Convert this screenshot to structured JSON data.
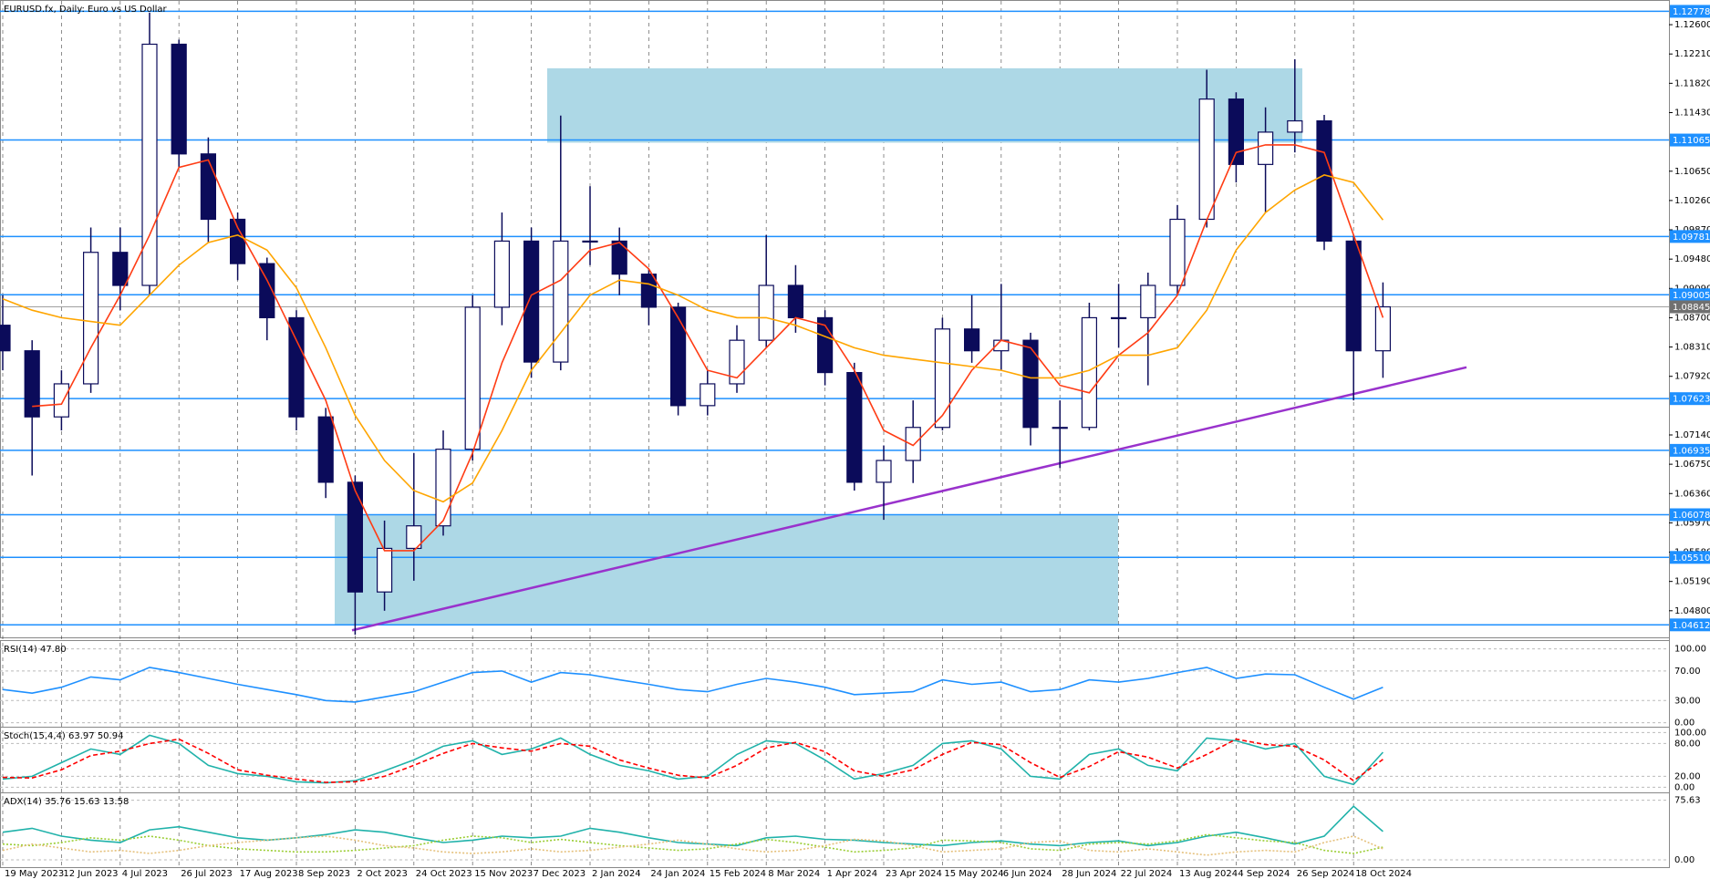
{
  "chart_data": [
    {
      "type": "candlestick",
      "title": "EURUSD.fx, Daily:  Euro vs US Dollar",
      "categories": [
        "19 May 2023",
        null,
        "12 Jun 2023",
        null,
        "4 Jul 2023",
        null,
        "26 Jul 2023",
        null,
        "17 Aug 2023",
        null,
        "8 Sep 2023",
        null,
        "2 Oct 2023",
        null,
        "24 Oct 2023",
        null,
        "15 Nov 2023",
        null,
        "7 Dec 2023",
        null,
        "2 Jan 2024",
        null,
        "24 Jan 2024",
        null,
        "15 Feb 2024",
        null,
        "8 Mar 2024",
        null,
        "1 Apr 2024",
        null,
        "23 Apr 2024",
        null,
        "15 May 2024",
        null,
        "6 Jun 2024",
        null,
        "28 Jun 2024",
        null,
        "22 Jul 2024",
        null,
        "13 Aug 2024",
        null,
        "4 Sep 2024",
        null,
        "26 Sep 2024",
        null,
        "18 Oct 2024",
        null
      ],
      "open": [
        1.086,
        1.0826,
        1.0738,
        1.0782,
        1.0957,
        1.0913,
        1.1234,
        1.1088,
        1.1001,
        1.0942,
        1.087,
        1.0738,
        1.0651,
        1.0505,
        1.0563,
        1.0593,
        1.0695,
        1.0884,
        1.0972,
        1.0811,
        1.0972,
        1.0972,
        1.0928,
        1.0884,
        1.0753,
        1.0782,
        1.084,
        1.0913,
        1.087,
        1.0797,
        1.0651,
        1.068,
        1.0724,
        1.0855,
        1.0826,
        1.084,
        1.0724,
        1.0724,
        1.087,
        1.087,
        1.0913,
        1.1001,
        1.1161,
        1.1074,
        1.1117,
        1.1132,
        1.0972,
        1.0826
      ],
      "high": [
        1.09,
        1.084,
        1.08,
        1.099,
        1.099,
        1.1276,
        1.124,
        1.111,
        1.101,
        1.095,
        1.088,
        1.075,
        1.066,
        1.06,
        1.069,
        1.072,
        1.09,
        1.101,
        1.099,
        1.1139,
        1.1045,
        1.099,
        1.0935,
        1.089,
        1.08,
        1.086,
        1.098,
        1.094,
        1.088,
        1.081,
        1.07,
        1.076,
        1.087,
        1.09,
        1.0915,
        1.085,
        1.076,
        1.089,
        1.0915,
        1.093,
        1.102,
        1.12,
        1.117,
        1.115,
        1.1214,
        1.114,
        1.098,
        1.0917
      ],
      "low": [
        1.08,
        1.066,
        1.072,
        1.077,
        1.088,
        1.09,
        1.107,
        1.097,
        1.092,
        1.084,
        1.072,
        1.063,
        1.0448,
        1.048,
        1.052,
        1.058,
        1.068,
        1.086,
        1.079,
        1.08,
        1.094,
        1.09,
        1.086,
        1.074,
        1.074,
        1.077,
        1.083,
        1.085,
        1.078,
        1.064,
        1.0601,
        1.065,
        1.072,
        1.081,
        1.08,
        1.07,
        1.067,
        1.072,
        1.083,
        1.078,
        1.09,
        1.099,
        1.105,
        1.101,
        1.109,
        1.096,
        1.076,
        1.079
      ],
      "close": [
        1.0826,
        1.0738,
        1.0782,
        1.0957,
        1.0913,
        1.1234,
        1.1088,
        1.1001,
        1.0942,
        1.087,
        1.0738,
        1.0651,
        1.0505,
        1.0563,
        1.0593,
        1.0695,
        1.0884,
        1.0972,
        1.0811,
        1.0972,
        1.0972,
        1.0928,
        1.0884,
        1.0753,
        1.0782,
        1.084,
        1.0913,
        1.087,
        1.0797,
        1.0651,
        1.068,
        1.0724,
        1.0855,
        1.0826,
        1.084,
        1.0724,
        1.0724,
        1.087,
        1.087,
        1.0913,
        1.1001,
        1.1161,
        1.1074,
        1.1117,
        1.1132,
        1.0972,
        1.0826,
        1.08845
      ],
      "up_color": "#ffffff",
      "down_color": "#0b0b5a",
      "candle_outline": "#0b0b5a",
      "series": [
        {
          "color": "#ff3c14",
          "values": [
            null,
            1.0752,
            1.0755,
            1.083,
            1.09,
            1.098,
            1.107,
            1.108,
            1.099,
            1.092,
            1.084,
            1.076,
            1.064,
            1.056,
            1.056,
            1.06,
            1.069,
            1.081,
            1.09,
            1.092,
            1.096,
            1.097,
            1.0935,
            1.087,
            1.08,
            1.079,
            1.083,
            1.087,
            1.086,
            1.08,
            1.072,
            1.07,
            1.074,
            1.08,
            1.084,
            1.083,
            1.078,
            1.077,
            1.082,
            1.085,
            1.09,
            1.1,
            1.109,
            1.11,
            1.11,
            1.109,
            1.098,
            1.087
          ]
        },
        {
          "color": "#ffa500",
          "values": [
            1.0895,
            1.088,
            1.087,
            1.0865,
            1.086,
            1.09,
            1.094,
            1.097,
            1.098,
            1.096,
            1.091,
            1.083,
            1.074,
            1.068,
            1.064,
            1.0625,
            1.065,
            1.072,
            1.08,
            1.085,
            1.09,
            1.092,
            1.0915,
            1.09,
            1.088,
            1.087,
            1.087,
            1.086,
            1.0845,
            1.083,
            1.082,
            1.0815,
            1.081,
            1.0805,
            1.08,
            1.079,
            1.079,
            1.08,
            1.082,
            1.082,
            1.083,
            1.088,
            1.096,
            1.101,
            1.104,
            1.106,
            1.105,
            1.1
          ]
        }
      ],
      "ylim": [
        1.0447,
        1.1288
      ],
      "yticks": [
        {
          "value": 1.126,
          "label": "1.12600"
        },
        {
          "value": 1.1221,
          "label": "1.12210"
        },
        {
          "value": 1.1182,
          "label": "1.11820"
        },
        {
          "value": 1.1143,
          "label": "1.11430"
        },
        {
          "value": 1.1065,
          "label": "1.10650"
        },
        {
          "value": 1.1026,
          "label": "1.10260"
        },
        {
          "value": 1.0987,
          "label": "1.09870"
        },
        {
          "value": 1.0948,
          "label": "1.09480"
        },
        {
          "value": 1.0909,
          "label": "1.09090"
        },
        {
          "value": 1.087,
          "label": "1.08700"
        },
        {
          "value": 1.0831,
          "label": "1.08310"
        },
        {
          "value": 1.0792,
          "label": "1.07920"
        },
        {
          "value": 1.0714,
          "label": "1.07140"
        },
        {
          "value": 1.0675,
          "label": "1.06750"
        },
        {
          "value": 1.0636,
          "label": "1.06360"
        },
        {
          "value": 1.0597,
          "label": "1.05970"
        },
        {
          "value": 1.0558,
          "label": "1.05580"
        },
        {
          "value": 1.0519,
          "label": "1.05190"
        },
        {
          "value": 1.048,
          "label": "1.04800"
        }
      ],
      "levels": [
        {
          "value": 1.12778,
          "label": "1.12778"
        },
        {
          "value": 1.11065,
          "label": "1.11065"
        },
        {
          "value": 1.09781,
          "label": "1.09781"
        },
        {
          "value": 1.09005,
          "label": "1.09005"
        },
        {
          "value": 1.07623,
          "label": "1.07623"
        },
        {
          "value": 1.06935,
          "label": "1.06935"
        },
        {
          "value": 1.06078,
          "label": "1.06078"
        },
        {
          "value": 1.0551,
          "label": "1.05510"
        },
        {
          "value": 1.04612,
          "label": "1.04612"
        }
      ],
      "level_color": "#1e90ff",
      "current_price": {
        "value": 1.08845,
        "label": "1.08845"
      },
      "zones": [
        {
          "low": 1.1103,
          "high": 1.1202
        },
        {
          "low": 1.04612,
          "high": 1.0607
        }
      ],
      "zone_color": "#add8e6",
      "trendline": {
        "start": 1.0454,
        "end": 1.0804,
        "color": "#9932cc"
      },
      "grid": true
    },
    {
      "type": "line",
      "title": "RSI(14) 47.80",
      "ylim": [
        -3,
        107
      ],
      "yticks": [
        {
          "value": 100,
          "label": "100.00"
        },
        {
          "value": 70,
          "label": "70.00"
        },
        {
          "value": 30,
          "label": "30.00"
        },
        {
          "value": 0,
          "label": "0.00"
        }
      ],
      "series": [
        {
          "color": "#1e90ff",
          "style": "solid",
          "values": [
            45,
            40,
            48,
            62,
            58,
            75,
            68,
            60,
            52,
            45,
            38,
            30,
            28,
            35,
            42,
            55,
            68,
            70,
            55,
            68,
            65,
            58,
            52,
            45,
            42,
            52,
            60,
            55,
            48,
            38,
            40,
            42,
            58,
            52,
            55,
            42,
            45,
            58,
            55,
            60,
            68,
            75,
            60,
            66,
            65,
            48,
            32,
            48
          ]
        }
      ]
    },
    {
      "type": "line",
      "title": "Stoch(15,4,4) 63.97 50.94",
      "ylim": [
        -6,
        104
      ],
      "yticks": [
        {
          "value": 100,
          "label": "100.00"
        },
        {
          "value": 80,
          "label": "80.00"
        },
        {
          "value": 20,
          "label": "20.00"
        },
        {
          "value": 0,
          "label": "0.00"
        }
      ],
      "series": [
        {
          "color": "#20b2aa",
          "style": "solid",
          "values": [
            15,
            20,
            45,
            70,
            60,
            95,
            80,
            40,
            25,
            20,
            10,
            8,
            12,
            30,
            50,
            75,
            85,
            60,
            70,
            90,
            60,
            40,
            30,
            15,
            20,
            60,
            85,
            80,
            50,
            15,
            25,
            40,
            80,
            85,
            70,
            20,
            15,
            60,
            70,
            40,
            30,
            90,
            85,
            70,
            80,
            20,
            5,
            64
          ]
        },
        {
          "color": "#ff0000",
          "style": "dashed",
          "values": [
            18,
            17,
            32,
            58,
            66,
            80,
            88,
            62,
            32,
            22,
            15,
            9,
            10,
            20,
            40,
            62,
            80,
            72,
            66,
            80,
            75,
            50,
            35,
            22,
            17,
            40,
            72,
            82,
            65,
            30,
            20,
            32,
            60,
            82,
            78,
            45,
            18,
            38,
            65,
            55,
            35,
            60,
            88,
            78,
            75,
            50,
            12,
            51
          ]
        }
      ]
    },
    {
      "type": "line",
      "title": "ADX(14) 35.76 15.63 13.58",
      "ylim": [
        -7,
        81
      ],
      "yticks": [
        75.63,
        {
          "value": 0,
          "label": "0.00"
        }
      ],
      "series": [
        {
          "color": "#20b2aa",
          "style": "solid",
          "values": [
            35,
            40,
            30,
            25,
            22,
            38,
            42,
            35,
            28,
            25,
            28,
            32,
            38,
            35,
            28,
            22,
            25,
            30,
            28,
            30,
            40,
            35,
            28,
            22,
            20,
            18,
            28,
            30,
            26,
            25,
            22,
            20,
            18,
            22,
            24,
            20,
            18,
            22,
            24,
            18,
            22,
            30,
            35,
            28,
            20,
            30,
            68,
            36
          ]
        },
        {
          "color": "#9acd32",
          "style": "dotted",
          "values": [
            20,
            18,
            22,
            28,
            25,
            30,
            25,
            18,
            14,
            12,
            10,
            10,
            12,
            15,
            18,
            25,
            30,
            28,
            22,
            26,
            22,
            18,
            15,
            12,
            14,
            20,
            26,
            22,
            16,
            10,
            12,
            15,
            25,
            24,
            22,
            14,
            12,
            20,
            22,
            20,
            24,
            32,
            28,
            24,
            22,
            12,
            8,
            16
          ]
        },
        {
          "color": "#e5c07b",
          "style": "dotted",
          "values": [
            12,
            20,
            15,
            10,
            12,
            8,
            12,
            18,
            22,
            25,
            28,
            30,
            25,
            18,
            15,
            10,
            8,
            10,
            14,
            10,
            12,
            16,
            20,
            25,
            20,
            14,
            10,
            12,
            18,
            26,
            24,
            18,
            10,
            12,
            14,
            22,
            24,
            12,
            10,
            14,
            10,
            6,
            10,
            12,
            10,
            22,
            30,
            14
          ]
        }
      ]
    }
  ]
}
